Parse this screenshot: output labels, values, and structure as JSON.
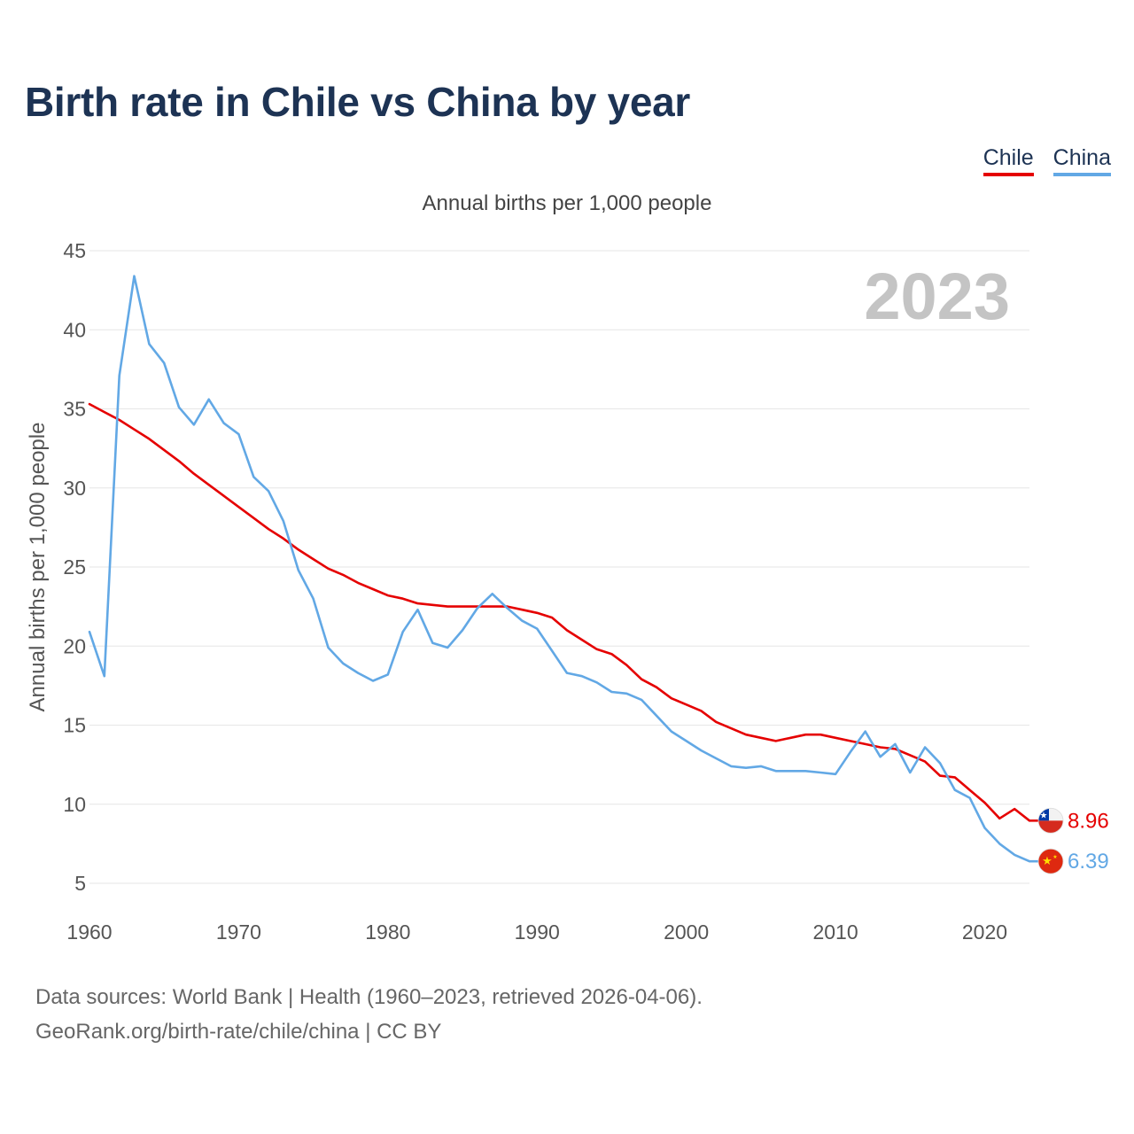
{
  "title": "Birth rate in Chile vs China by year",
  "legend": [
    {
      "label": "Chile",
      "color": "#e50000"
    },
    {
      "label": "China",
      "color": "#62a8e5"
    }
  ],
  "subtitle": "Annual births per 1,000 people",
  "footer": {
    "line1": "Data sources: World Bank | Health (1960–2023, retrieved 2026-04-06).",
    "line2": "GeoRank.org/birth-rate/chile/china | CC BY"
  },
  "chart_data": {
    "type": "line",
    "title": "Birth rate in Chile vs China by year",
    "xlabel": "",
    "ylabel": "Annual births per 1,000 people",
    "xlim": [
      1960,
      2023
    ],
    "ylim": [
      5,
      45
    ],
    "xticks": [
      1960,
      1970,
      1980,
      1990,
      2000,
      2010,
      2020
    ],
    "yticks": [
      5,
      10,
      15,
      20,
      25,
      30,
      35,
      40,
      45
    ],
    "grid": true,
    "year_label": "2023",
    "x": [
      1960,
      1961,
      1962,
      1963,
      1964,
      1965,
      1966,
      1967,
      1968,
      1969,
      1970,
      1971,
      1972,
      1973,
      1974,
      1975,
      1976,
      1977,
      1978,
      1979,
      1980,
      1981,
      1982,
      1983,
      1984,
      1985,
      1986,
      1987,
      1988,
      1989,
      1990,
      1991,
      1992,
      1993,
      1994,
      1995,
      1996,
      1997,
      1998,
      1999,
      2000,
      2001,
      2002,
      2003,
      2004,
      2005,
      2006,
      2007,
      2008,
      2009,
      2010,
      2011,
      2012,
      2013,
      2014,
      2015,
      2016,
      2017,
      2018,
      2019,
      2020,
      2021,
      2022,
      2023
    ],
    "series": [
      {
        "name": "Chile",
        "color": "#e50000",
        "flag": "chile-flag",
        "end_label": "8.96",
        "values": [
          35.3,
          34.8,
          34.3,
          33.7,
          33.1,
          32.4,
          31.7,
          30.9,
          30.2,
          29.5,
          28.8,
          28.1,
          27.4,
          26.8,
          26.1,
          25.5,
          24.9,
          24.5,
          24.0,
          23.6,
          23.2,
          23.0,
          22.7,
          22.6,
          22.5,
          22.5,
          22.5,
          22.5,
          22.5,
          22.3,
          22.1,
          21.8,
          21.0,
          20.4,
          19.8,
          19.5,
          18.8,
          17.9,
          17.4,
          16.7,
          16.3,
          15.9,
          15.2,
          14.8,
          14.4,
          14.2,
          14.0,
          14.2,
          14.4,
          14.4,
          14.2,
          14.0,
          13.8,
          13.6,
          13.5,
          13.1,
          12.7,
          11.8,
          11.7,
          10.9,
          10.1,
          9.1,
          9.7,
          8.96
        ]
      },
      {
        "name": "China",
        "color": "#62a8e5",
        "flag": "china-flag",
        "end_label": "6.39",
        "values": [
          20.9,
          18.1,
          37.1,
          43.4,
          39.1,
          37.9,
          35.1,
          34.0,
          35.6,
          34.1,
          33.4,
          30.7,
          29.8,
          27.9,
          24.8,
          23.0,
          19.9,
          18.9,
          18.3,
          17.8,
          18.2,
          20.9,
          22.3,
          20.2,
          19.9,
          21.0,
          22.4,
          23.3,
          22.4,
          21.6,
          21.1,
          19.7,
          18.3,
          18.1,
          17.7,
          17.1,
          17.0,
          16.6,
          15.6,
          14.6,
          14.0,
          13.4,
          12.9,
          12.4,
          12.3,
          12.4,
          12.1,
          12.1,
          12.1,
          12.0,
          11.9,
          13.3,
          14.6,
          13.0,
          13.8,
          12.0,
          13.6,
          12.6,
          10.9,
          10.4,
          8.5,
          7.5,
          6.8,
          6.39
        ]
      }
    ]
  }
}
